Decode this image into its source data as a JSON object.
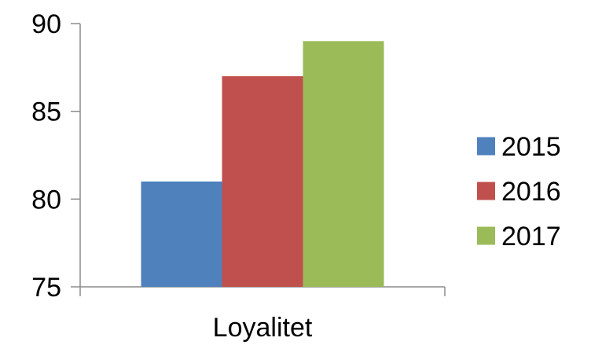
{
  "chart_data": {
    "type": "bar",
    "categories": [
      "Loyalitet"
    ],
    "series": [
      {
        "name": "2015",
        "values": [
          81
        ],
        "color": "#4f81bd"
      },
      {
        "name": "2016",
        "values": [
          87
        ],
        "color": "#c0504d"
      },
      {
        "name": "2017",
        "values": [
          89
        ],
        "color": "#9bbb59"
      }
    ],
    "title": "",
    "xlabel": "",
    "ylabel": "",
    "ylim": [
      75,
      90
    ],
    "yticks": [
      "75",
      "80",
      "85",
      "90"
    ],
    "grid": false,
    "legend": "right"
  }
}
